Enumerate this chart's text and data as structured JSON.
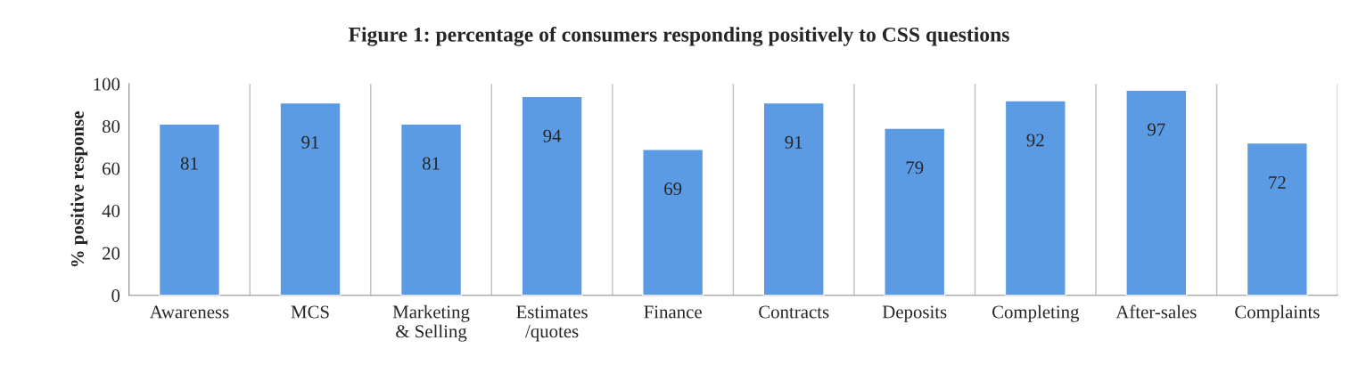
{
  "chart_data": {
    "type": "bar",
    "title": "Figure 1: percentage of consumers responding positively to CSS questions",
    "ylabel": "% positive response",
    "categories": [
      "Awareness",
      "MCS",
      "Marketing\n& Selling",
      "Estimates\n/quotes",
      "Finance",
      "Contracts",
      "Deposits",
      "Completing",
      "After-sales",
      "Complaints"
    ],
    "values": [
      81,
      91,
      81,
      94,
      69,
      91,
      79,
      92,
      97,
      72
    ],
    "color": "#5b9be3",
    "ylim": [
      0,
      100
    ],
    "yticks": [
      0,
      20,
      40,
      60,
      80,
      100
    ],
    "grid": "x",
    "data_labels": true
  }
}
